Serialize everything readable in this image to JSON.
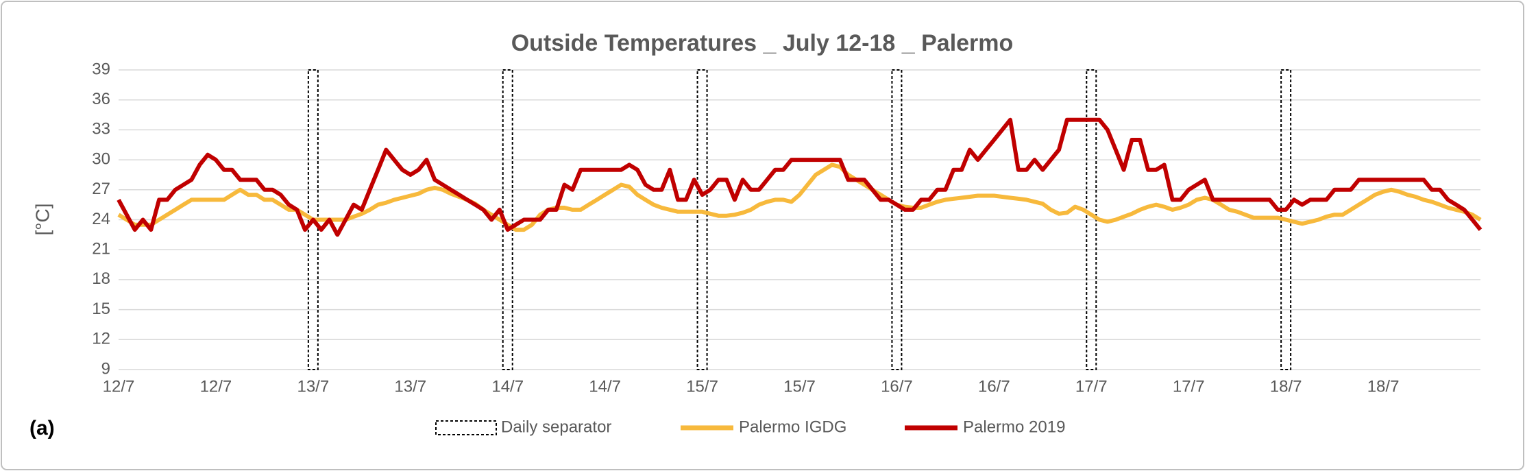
{
  "chart_data": {
    "type": "line",
    "title": "Outside Temperatures _ July 12-18 _ Palermo",
    "ylabel": "[°C]",
    "panel_label": "(a)",
    "categories": [
      "12/7",
      null,
      null,
      null,
      null,
      null,
      null,
      null,
      null,
      null,
      null,
      null,
      "12/7",
      null,
      null,
      null,
      null,
      null,
      null,
      null,
      null,
      null,
      null,
      null,
      "13/7",
      null,
      null,
      null,
      null,
      null,
      null,
      null,
      null,
      null,
      null,
      null,
      "13/7",
      null,
      null,
      null,
      null,
      null,
      null,
      null,
      null,
      null,
      null,
      null,
      "14/7",
      null,
      null,
      null,
      null,
      null,
      null,
      null,
      null,
      null,
      null,
      null,
      "14/7",
      null,
      null,
      null,
      null,
      null,
      null,
      null,
      null,
      null,
      null,
      null,
      "15/7",
      null,
      null,
      null,
      null,
      null,
      null,
      null,
      null,
      null,
      null,
      null,
      "15/7",
      null,
      null,
      null,
      null,
      null,
      null,
      null,
      null,
      null,
      null,
      null,
      "16/7",
      null,
      null,
      null,
      null,
      null,
      null,
      null,
      null,
      null,
      null,
      null,
      "16/7",
      null,
      null,
      null,
      null,
      null,
      null,
      null,
      null,
      null,
      null,
      null,
      "17/7",
      null,
      null,
      null,
      null,
      null,
      null,
      null,
      null,
      null,
      null,
      null,
      "17/7",
      null,
      null,
      null,
      null,
      null,
      null,
      null,
      null,
      null,
      null,
      null,
      "18/7",
      null,
      null,
      null,
      null,
      null,
      null,
      null,
      null,
      null,
      null,
      null,
      "18/7",
      null,
      null,
      null,
      null,
      null,
      null,
      null,
      null,
      null,
      null,
      null,
      null
    ],
    "ylim": [
      9,
      39
    ],
    "yticks": [
      9,
      12,
      15,
      18,
      21,
      24,
      27,
      30,
      33,
      36,
      39
    ],
    "grid": true,
    "separators": {
      "name": "Daily separator",
      "positions": [
        24,
        48,
        72,
        96,
        120,
        144
      ]
    },
    "series": [
      {
        "name": "Palermo IGDG",
        "color": "#f7b93c",
        "values": [
          24.5,
          24,
          23.5,
          23.5,
          23.5,
          24,
          24.5,
          25,
          25.5,
          26,
          26,
          26,
          26,
          26,
          26.5,
          27,
          26.5,
          26.5,
          26,
          26,
          25.5,
          25,
          25,
          24.5,
          24,
          24,
          24,
          24,
          24,
          24.3,
          24.6,
          25,
          25.5,
          25.7,
          26,
          26.2,
          26.4,
          26.6,
          27,
          27.2,
          27,
          26.6,
          26.3,
          26,
          25.6,
          25,
          24.5,
          24,
          23.5,
          23,
          23,
          23.5,
          24.5,
          25,
          25.2,
          25.2,
          25,
          25,
          25.5,
          26,
          26.5,
          27,
          27.5,
          27.3,
          26.5,
          26,
          25.5,
          25.2,
          25,
          24.8,
          24.8,
          24.8,
          24.8,
          24.6,
          24.4,
          24.4,
          24.5,
          24.7,
          25,
          25.5,
          25.8,
          26,
          26,
          25.8,
          26.5,
          27.5,
          28.5,
          29,
          29.5,
          29.3,
          28.5,
          28,
          27.5,
          27,
          26.5,
          26,
          25.5,
          25.3,
          25.2,
          25.2,
          25.5,
          25.8,
          26,
          26.1,
          26.2,
          26.3,
          26.4,
          26.4,
          26.4,
          26.3,
          26.2,
          26.1,
          26,
          25.8,
          25.6,
          25,
          24.6,
          24.7,
          25.3,
          25,
          24.5,
          24,
          23.8,
          24,
          24.3,
          24.6,
          25,
          25.3,
          25.5,
          25.3,
          25,
          25.2,
          25.5,
          26,
          26.2,
          26,
          25.5,
          25,
          24.8,
          24.5,
          24.2,
          24.2,
          24.2,
          24.2,
          24,
          23.8,
          23.6,
          23.8,
          24,
          24.3,
          24.5,
          24.5,
          25,
          25.5,
          26,
          26.5,
          26.8,
          27,
          26.8,
          26.5,
          26.3,
          26,
          25.8,
          25.5,
          25.2,
          25,
          24.8,
          24.5,
          24
        ]
      },
      {
        "name": "Palermo 2019",
        "color": "#c00000",
        "values": [
          26,
          24.5,
          23,
          24,
          23,
          26,
          26,
          27,
          27.5,
          28,
          29.5,
          30.5,
          30,
          29,
          29,
          28,
          28,
          28,
          27,
          27,
          26.5,
          25.5,
          25,
          23,
          24,
          23,
          24,
          22.5,
          24,
          25.5,
          25,
          27,
          29,
          31,
          30,
          29,
          28.5,
          29,
          30,
          28,
          27.5,
          27,
          26.5,
          26,
          25.5,
          25,
          24,
          25,
          23,
          23.5,
          24,
          24,
          24,
          25,
          25,
          27.5,
          27,
          29,
          29,
          29,
          29,
          29,
          29,
          29.5,
          29,
          27.5,
          27,
          27,
          29,
          26,
          26,
          28,
          26.5,
          27,
          28,
          28,
          26,
          28,
          27,
          27,
          28,
          29,
          29,
          30,
          30,
          30,
          30,
          30,
          30,
          30,
          28,
          28,
          28,
          27,
          26,
          26,
          25.5,
          25,
          25,
          26,
          26,
          27,
          27,
          29,
          29,
          31,
          30,
          31,
          32,
          33,
          34,
          29,
          29,
          30,
          29,
          30,
          31,
          34,
          34,
          34,
          34,
          34,
          33,
          31,
          29,
          32,
          32,
          29,
          29,
          29.5,
          26,
          26,
          27,
          27.5,
          28,
          26,
          26,
          26,
          26,
          26,
          26,
          26,
          26,
          25,
          25,
          26,
          25.5,
          26,
          26,
          26,
          27,
          27,
          27,
          28,
          28,
          28,
          28,
          28,
          28,
          28,
          28,
          28,
          27,
          27,
          26,
          25.5,
          25,
          24,
          23
        ]
      }
    ]
  }
}
